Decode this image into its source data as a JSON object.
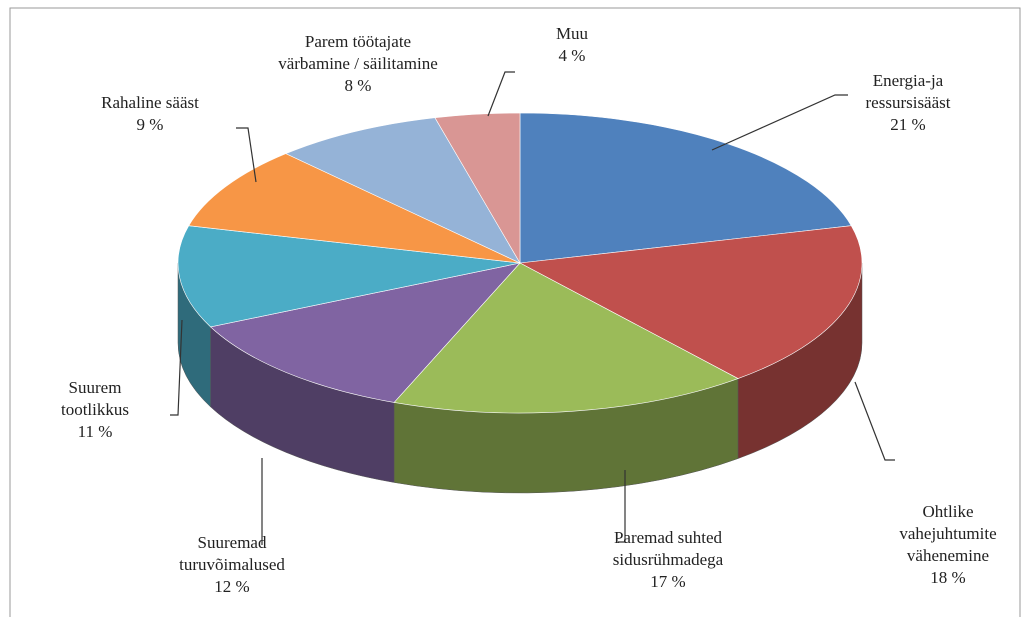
{
  "chart_data": {
    "type": "pie",
    "categories": [
      "Energia-ja ressursisääst",
      "Ohtlike vahejuhtumite vähenemine",
      "Paremad suhted sidusrühmadega",
      "Suuremad turuvõimalused",
      "Suurem tootlikkus",
      "Rahaline sääst",
      "Parem töötajate värbamine / säilitamine",
      "Muu"
    ],
    "values": [
      21,
      18,
      17,
      12,
      11,
      9,
      8,
      4
    ],
    "value_labels": [
      "21 %",
      "18 %",
      "17 %",
      "12 %",
      "11 %",
      "9 %",
      "8 %",
      "4 %"
    ],
    "colors": [
      "#4f81bd",
      "#c0504d",
      "#9bbb59",
      "#8064a2",
      "#4bacc6",
      "#f79646",
      "#95b3d7",
      "#d99694"
    ]
  }
}
